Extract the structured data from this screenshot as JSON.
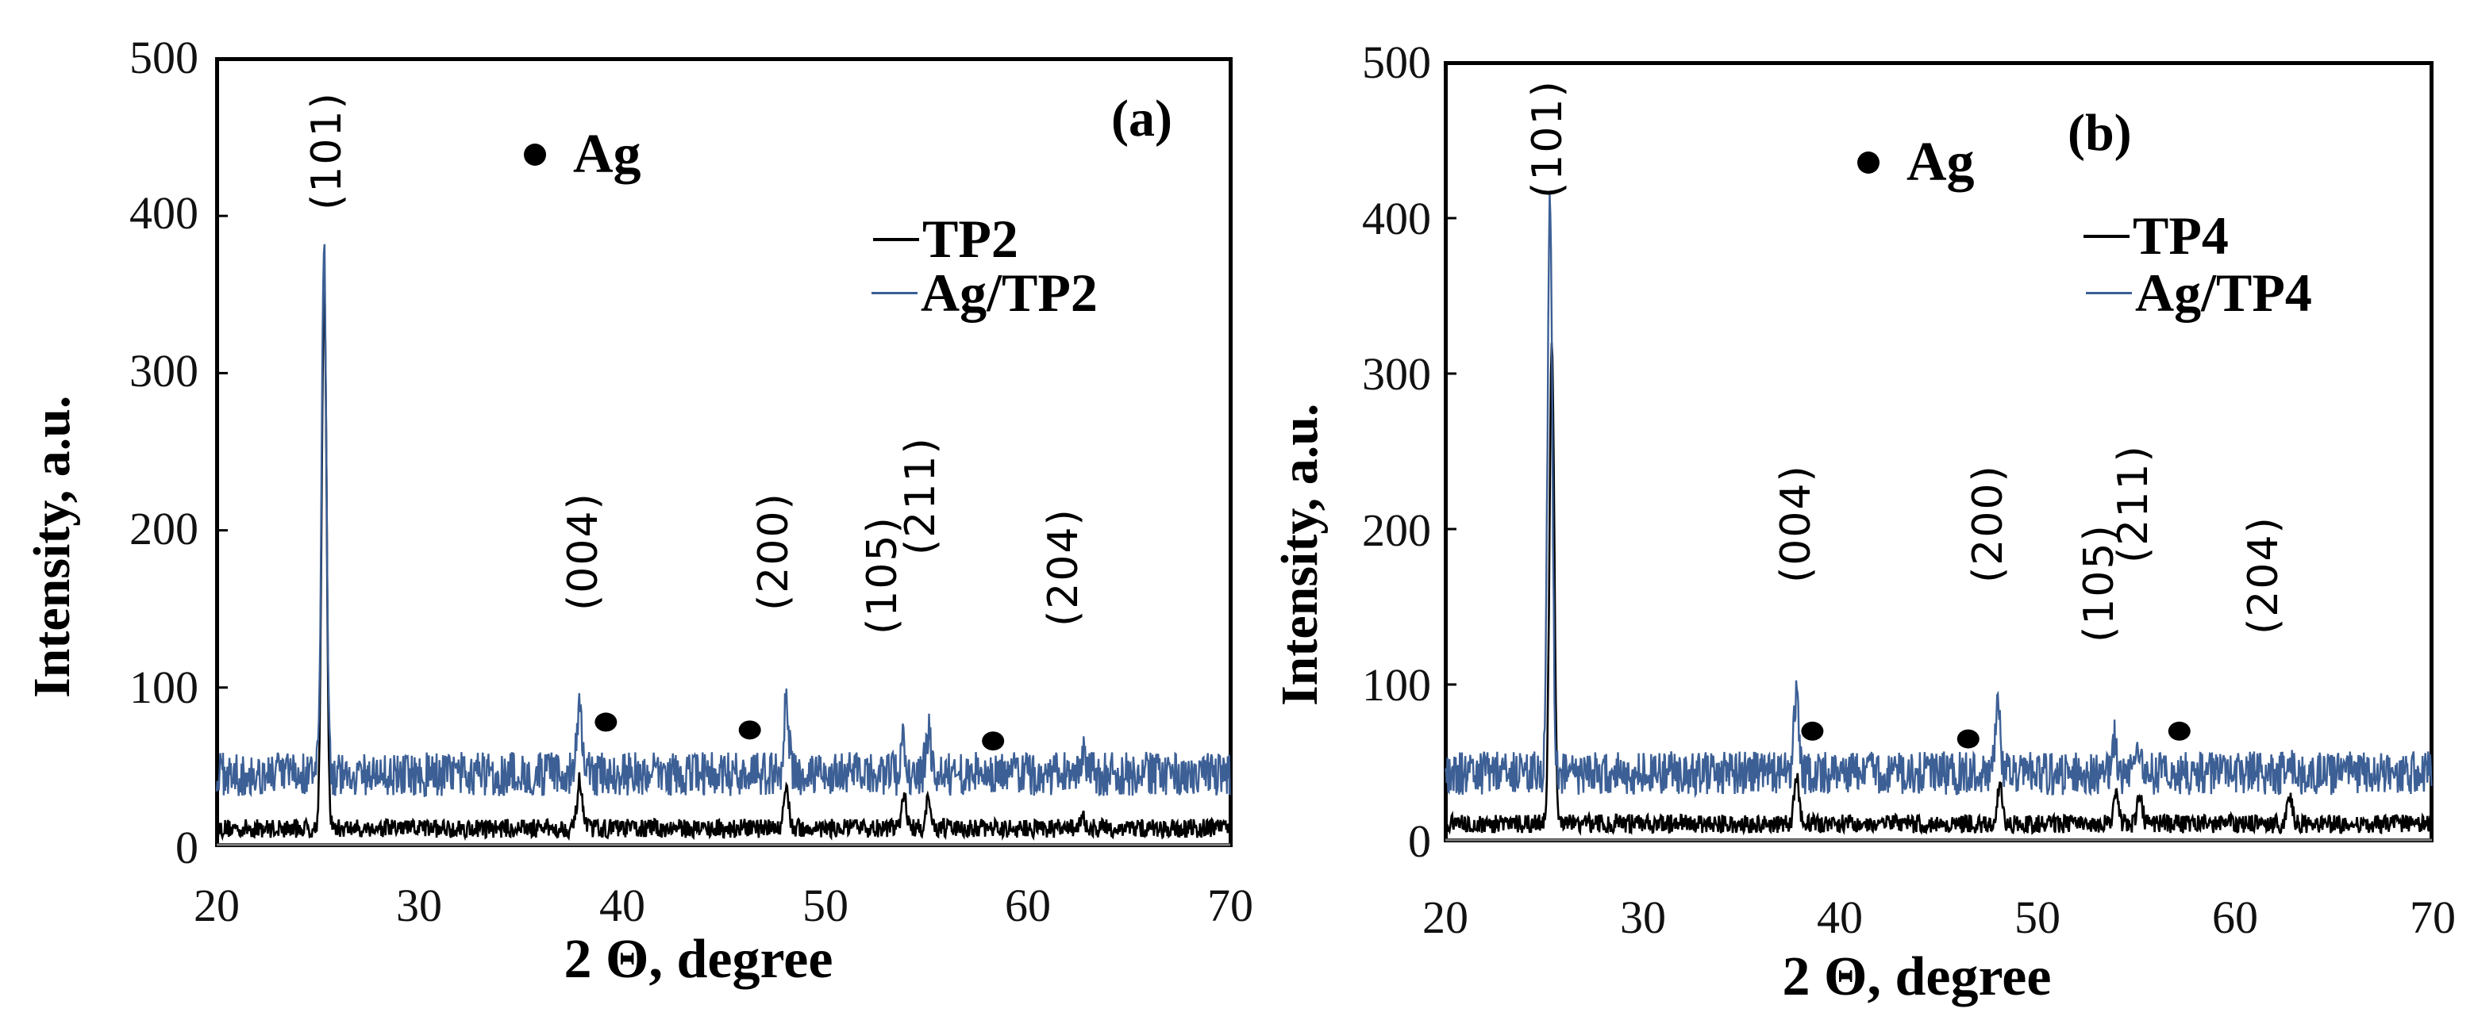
{
  "figure": {
    "panels": [
      {
        "tag": "(a)",
        "ylabel": "Intensity, a.u.",
        "xlabel": "2 Θ, degree",
        "yticks": [
          "0",
          "100",
          "200",
          "300",
          "400",
          "500"
        ],
        "xticks": [
          "20",
          "30",
          "40",
          "50",
          "60",
          "70"
        ],
        "ag_marker_label": "Ag",
        "legend": [
          {
            "label": "TP2",
            "color": "#000000"
          },
          {
            "label": "Ag/TP2",
            "color": "#3c5f95"
          }
        ],
        "hkl_labels": [
          "(101)",
          "(004)",
          "(200)",
          "(105)",
          "(211)",
          "(204)"
        ]
      },
      {
        "tag": "(b)",
        "ylabel": "Intensity, a.u.",
        "xlabel": "2 Θ, degree",
        "yticks": [
          "0",
          "100",
          "200",
          "300",
          "400",
          "500"
        ],
        "xticks": [
          "20",
          "30",
          "40",
          "50",
          "60",
          "70"
        ],
        "ag_marker_label": "Ag",
        "legend": [
          {
            "label": "TP4",
            "color": "#000000"
          },
          {
            "label": "Ag/TP4",
            "color": "#3c5f95"
          }
        ],
        "hkl_labels": [
          "(101)",
          "(004)",
          "(200)",
          "(105)",
          "(211)",
          "(204)"
        ]
      }
    ]
  },
  "chart_data": [
    {
      "type": "line",
      "title": "(a)",
      "xlabel": "2 Θ, degree",
      "ylabel": "Intensity, a.u.",
      "xlim": [
        20,
        70
      ],
      "ylim": [
        0,
        500
      ],
      "grid": false,
      "legend_position": "upper right",
      "series": [
        {
          "name": "TP2",
          "color": "#000000",
          "baseline": 8,
          "peaks": [
            {
              "x": 25.3,
              "y": 355
            },
            {
              "x": 37.9,
              "y": 38
            },
            {
              "x": 48.1,
              "y": 35
            },
            {
              "x": 53.9,
              "y": 30
            },
            {
              "x": 55.1,
              "y": 25
            },
            {
              "x": 62.7,
              "y": 15
            }
          ]
        },
        {
          "name": "Ag/TP2",
          "color": "#3c5f95",
          "baseline": 45,
          "peaks": [
            {
              "x": 25.3,
              "y": 373
            },
            {
              "x": 37.9,
              "y": 92
            },
            {
              "x": 48.1,
              "y": 90
            },
            {
              "x": 53.9,
              "y": 65
            },
            {
              "x": 55.1,
              "y": 72
            },
            {
              "x": 62.7,
              "y": 58
            }
          ]
        }
      ],
      "annotations": [
        {
          "text": "(101)",
          "x": 25.3
        },
        {
          "text": "(004)",
          "x": 37.9
        },
        {
          "text": "(200)",
          "x": 48.1
        },
        {
          "text": "(105)",
          "x": 53.9
        },
        {
          "text": "(211)",
          "x": 55.1
        },
        {
          "text": "(204)",
          "x": 62.7
        }
      ],
      "ag_markers": [
        {
          "x": 39.2,
          "y": 78
        },
        {
          "x": 46.3,
          "y": 73
        },
        {
          "x": 58.3,
          "y": 66
        }
      ]
    },
    {
      "type": "line",
      "title": "(b)",
      "xlabel": "2 Θ, degree",
      "ylabel": "Intensity, a.u.",
      "xlim": [
        20,
        70
      ],
      "ylim": [
        0,
        500
      ],
      "grid": false,
      "legend_position": "upper right",
      "series": [
        {
          "name": "TP4",
          "color": "#000000",
          "baseline": 8,
          "peaks": [
            {
              "x": 25.4,
              "y": 315
            },
            {
              "x": 37.8,
              "y": 40
            },
            {
              "x": 48.1,
              "y": 35
            },
            {
              "x": 54.0,
              "y": 28
            },
            {
              "x": 55.2,
              "y": 28
            },
            {
              "x": 62.8,
              "y": 25
            }
          ]
        },
        {
          "name": "Ag/TP4",
          "color": "#3c5f95",
          "baseline": 43,
          "peaks": [
            {
              "x": 25.3,
              "y": 412
            },
            {
              "x": 37.8,
              "y": 97
            },
            {
              "x": 48.0,
              "y": 90
            },
            {
              "x": 53.9,
              "y": 65
            },
            {
              "x": 55.1,
              "y": 62
            },
            {
              "x": 62.8,
              "y": 50
            }
          ]
        }
      ],
      "annotations": [
        {
          "text": "(101)",
          "x": 25.3
        },
        {
          "text": "(004)",
          "x": 37.8
        },
        {
          "text": "(200)",
          "x": 48.0
        },
        {
          "text": "(105)",
          "x": 53.9
        },
        {
          "text": "(211)",
          "x": 55.1
        },
        {
          "text": "(204)",
          "x": 62.8
        }
      ],
      "ag_markers": [
        {
          "x": 38.6,
          "y": 70
        },
        {
          "x": 46.5,
          "y": 65
        },
        {
          "x": 57.2,
          "y": 70
        }
      ]
    }
  ]
}
